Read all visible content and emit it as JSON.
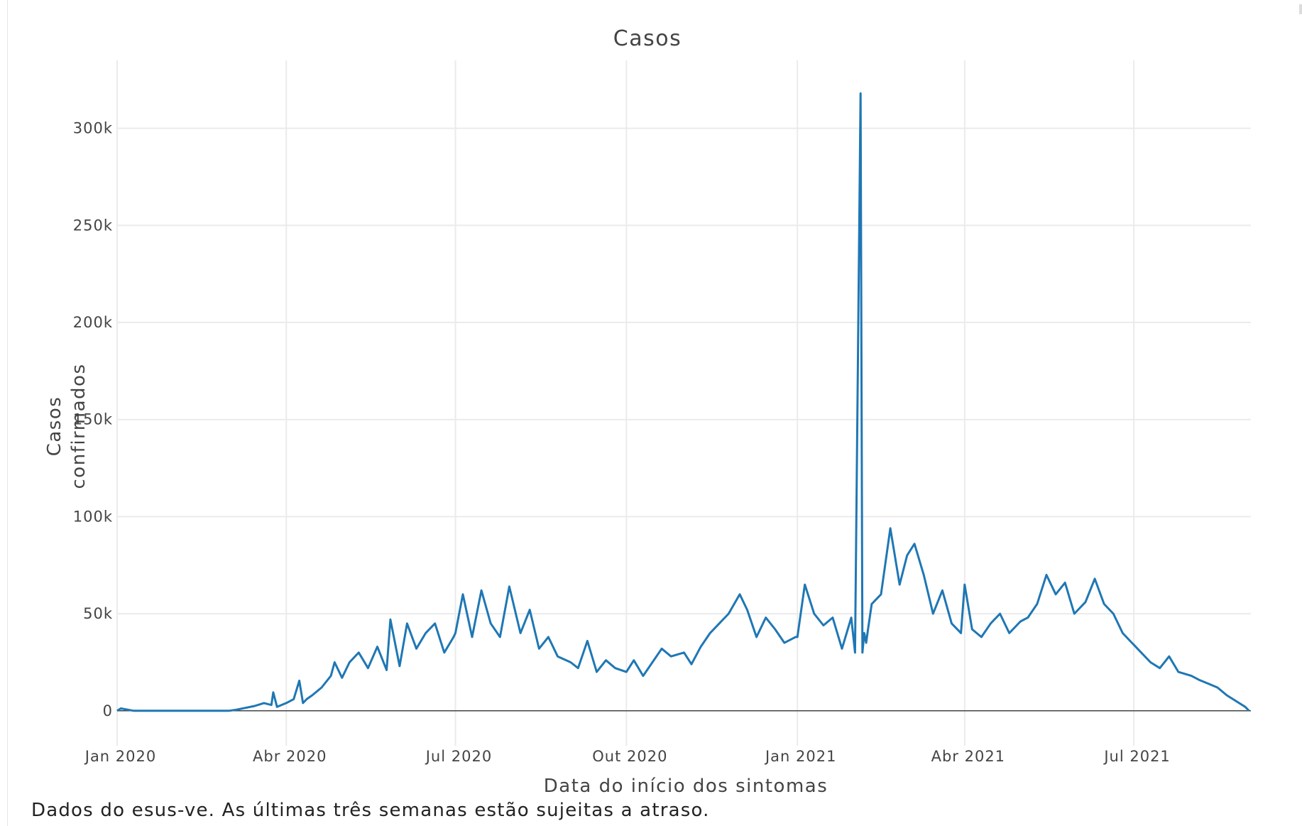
{
  "chart_data": {
    "type": "line",
    "title": "Casos",
    "xlabel": "Data do início dos sintomas",
    "ylabel": "Casos confirmados",
    "ylim": [
      -18000,
      335000
    ],
    "yticks": [
      0,
      50000,
      100000,
      150000,
      200000,
      250000,
      300000
    ],
    "ytick_labels": [
      "0",
      "50k",
      "100k",
      "150k",
      "200k",
      "250k",
      "300k"
    ],
    "xlim": [
      "2020-01-01",
      "2021-09-02"
    ],
    "xticks": [
      "2020-01-01",
      "2020-04-01",
      "2020-07-01",
      "2020-10-01",
      "2021-01-01",
      "2021-04-01",
      "2021-07-01"
    ],
    "xtick_labels": [
      "Jan 2020",
      "Abr 2020",
      "Jul 2020",
      "Out 2020",
      "Jan 2021",
      "Abr 2021",
      "Jul 2021"
    ],
    "grid": true,
    "line_color": "#1f77b4",
    "series": [
      {
        "name": "",
        "x": [
          "2020-01-01",
          "2020-01-03",
          "2020-01-10",
          "2020-01-20",
          "2020-02-01",
          "2020-02-15",
          "2020-02-29",
          "2020-03-01",
          "2020-03-05",
          "2020-03-10",
          "2020-03-15",
          "2020-03-20",
          "2020-03-24",
          "2020-03-25",
          "2020-03-27",
          "2020-04-01",
          "2020-04-05",
          "2020-04-08",
          "2020-04-10",
          "2020-04-12",
          "2020-04-15",
          "2020-04-20",
          "2020-04-25",
          "2020-04-27",
          "2020-05-01",
          "2020-05-05",
          "2020-05-10",
          "2020-05-15",
          "2020-05-20",
          "2020-05-25",
          "2020-05-27",
          "2020-06-01",
          "2020-06-05",
          "2020-06-10",
          "2020-06-15",
          "2020-06-20",
          "2020-06-25",
          "2020-06-30",
          "2020-07-01",
          "2020-07-05",
          "2020-07-10",
          "2020-07-15",
          "2020-07-20",
          "2020-07-25",
          "2020-07-30",
          "2020-08-05",
          "2020-08-10",
          "2020-08-15",
          "2020-08-20",
          "2020-08-25",
          "2020-09-01",
          "2020-09-05",
          "2020-09-10",
          "2020-09-15",
          "2020-09-20",
          "2020-09-25",
          "2020-10-01",
          "2020-10-05",
          "2020-10-10",
          "2020-10-15",
          "2020-10-20",
          "2020-10-25",
          "2020-11-01",
          "2020-11-05",
          "2020-11-10",
          "2020-11-15",
          "2020-11-20",
          "2020-11-25",
          "2020-12-01",
          "2020-12-05",
          "2020-12-10",
          "2020-12-15",
          "2020-12-20",
          "2020-12-25",
          "2020-12-31",
          "2021-01-01",
          "2021-01-05",
          "2021-01-10",
          "2021-01-15",
          "2021-01-20",
          "2021-01-25",
          "2021-01-30",
          "2021-02-01",
          "2021-02-04",
          "2021-02-05",
          "2021-02-06",
          "2021-02-07",
          "2021-02-08",
          "2021-02-10",
          "2021-02-15",
          "2021-02-20",
          "2021-02-25",
          "2021-03-01",
          "2021-03-05",
          "2021-03-10",
          "2021-03-15",
          "2021-03-20",
          "2021-03-25",
          "2021-03-30",
          "2021-04-01",
          "2021-04-05",
          "2021-04-10",
          "2021-04-15",
          "2021-04-20",
          "2021-04-25",
          "2021-05-01",
          "2021-05-05",
          "2021-05-10",
          "2021-05-15",
          "2021-05-20",
          "2021-05-25",
          "2021-05-30",
          "2021-06-05",
          "2021-06-10",
          "2021-06-15",
          "2021-06-20",
          "2021-06-25",
          "2021-06-30",
          "2021-07-01",
          "2021-07-05",
          "2021-07-10",
          "2021-07-15",
          "2021-07-20",
          "2021-07-25",
          "2021-08-01",
          "2021-08-05",
          "2021-08-10",
          "2021-08-15",
          "2021-08-20",
          "2021-08-25",
          "2021-08-30",
          "2021-09-01"
        ],
        "values": [
          0,
          1200,
          0,
          0,
          0,
          0,
          0,
          0,
          500,
          1500,
          2500,
          4000,
          3000,
          9500,
          2000,
          4000,
          6000,
          15500,
          4000,
          6000,
          8000,
          12000,
          18000,
          25000,
          17000,
          25000,
          30000,
          22000,
          33000,
          21000,
          47000,
          23000,
          45000,
          32000,
          40000,
          45000,
          30000,
          38000,
          40000,
          60000,
          38000,
          62000,
          45000,
          38000,
          64000,
          40000,
          52000,
          32000,
          38000,
          28000,
          25000,
          22000,
          36000,
          20000,
          26000,
          22000,
          20000,
          26000,
          18000,
          25000,
          32000,
          28000,
          30000,
          24000,
          33000,
          40000,
          45000,
          50000,
          60000,
          52000,
          38000,
          48000,
          42000,
          35000,
          38000,
          38000,
          65000,
          50000,
          44000,
          48000,
          32000,
          48000,
          30000,
          318000,
          30000,
          40000,
          35000,
          42000,
          55000,
          60000,
          94000,
          65000,
          80000,
          86000,
          70000,
          50000,
          62000,
          45000,
          40000,
          65000,
          42000,
          38000,
          45000,
          50000,
          40000,
          46000,
          48000,
          55000,
          70000,
          60000,
          66000,
          50000,
          56000,
          68000,
          55000,
          50000,
          40000,
          35000,
          34000,
          30000,
          25000,
          22000,
          28000,
          20000,
          18000,
          16000,
          14000,
          12000,
          8000,
          5000,
          2000,
          0
        ]
      }
    ]
  },
  "footnote": "Dados do esus-ve. As últimas três semanas estão sujeitas a atraso."
}
